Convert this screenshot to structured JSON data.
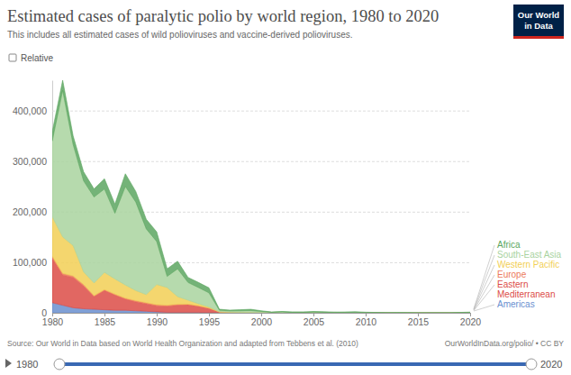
{
  "chart_data": {
    "type": "area",
    "title": "Estimated cases of paralytic polio by world region, 1980 to 2020",
    "subtitle": "This includes all estimated cases of wild polioviruses and vaccine-derived polioviruses.",
    "annotations": {
      "toggle": "Relative",
      "logo": [
        "Our World",
        "in Data"
      ],
      "source": "Source: Our World in Data based on World Health Organization and adapted from Tebbens et al. (2010)",
      "url": "OurWorldInData.org/polio/ • CC BY",
      "timeline": [
        "1980",
        "2020"
      ]
    },
    "stacked": true,
    "grid": true,
    "legend": "right",
    "x": [
      1980,
      1981,
      1982,
      1983,
      1984,
      1985,
      1986,
      1987,
      1988,
      1989,
      1990,
      1991,
      1992,
      1993,
      1994,
      1995,
      1996,
      1997,
      1998,
      1999,
      2000,
      2001,
      2002,
      2003,
      2004,
      2005,
      2006,
      2007,
      2008,
      2009,
      2010,
      2011,
      2012,
      2013,
      2014,
      2015,
      2016,
      2017,
      2018,
      2019,
      2020
    ],
    "xlim": [
      1980,
      2020
    ],
    "xticks": [
      1980,
      1985,
      1990,
      1995,
      2000,
      2005,
      2010,
      2015,
      2020
    ],
    "ylim": [
      0,
      460000
    ],
    "yticks": [
      0,
      {
        "value": 100000,
        "label": "100,000"
      },
      {
        "value": 200000,
        "label": "200,000"
      },
      {
        "value": 300000,
        "label": "300,000"
      },
      {
        "value": 400000,
        "label": "400,000"
      }
    ],
    "series": [
      {
        "name": "Africa",
        "color": "#5ca660",
        "values": [
          18000,
          20000,
          17000,
          18000,
          16000,
          20000,
          18000,
          25000,
          21000,
          19000,
          19000,
          15000,
          15000,
          10000,
          10000,
          10000,
          2000,
          1500,
          2000,
          2500,
          1500,
          800,
          800,
          1500,
          1500,
          1000,
          1200,
          400,
          1000,
          1200,
          500,
          600,
          200,
          100,
          100,
          50,
          100,
          100,
          100,
          400,
          600
        ]
      },
      {
        "name": "South-East Asia",
        "color": "#a9d39f",
        "values": [
          150000,
          290000,
          200000,
          180000,
          170000,
          165000,
          130000,
          195000,
          175000,
          130000,
          85000,
          22000,
          55000,
          35000,
          32000,
          28000,
          3000,
          2500,
          3000,
          3500,
          2000,
          600,
          1600,
          300,
          200,
          700,
          700,
          900,
          600,
          800,
          100,
          0,
          0,
          0,
          0,
          0,
          0,
          0,
          0,
          0,
          0
        ]
      },
      {
        "name": "Western Pacific",
        "color": "#f2cf55",
        "values": [
          78000,
          72000,
          60000,
          25000,
          25000,
          34000,
          30000,
          26000,
          20000,
          16000,
          40000,
          35000,
          15000,
          8000,
          4000,
          2000,
          500,
          200,
          0,
          0,
          100,
          0,
          0,
          0,
          0,
          0,
          0,
          0,
          0,
          0,
          0,
          0,
          0,
          0,
          0,
          0,
          0,
          0,
          0,
          50,
          0
        ]
      },
      {
        "name": "Europe",
        "color": "#ec7a5c",
        "values": [
          4000,
          3000,
          3000,
          3000,
          2000,
          2000,
          2000,
          2000,
          2000,
          2000,
          2000,
          2000,
          2000,
          1000,
          1000,
          1000,
          300,
          200,
          100,
          0,
          0,
          0,
          0,
          0,
          0,
          0,
          0,
          0,
          0,
          0,
          500,
          0,
          0,
          0,
          0,
          0,
          0,
          0,
          0,
          0,
          0
        ]
      },
      {
        "name": "Eastern Mediterranean",
        "color": "#dc4c47",
        "values": [
          88000,
          60000,
          60000,
          45000,
          25000,
          38000,
          30000,
          22000,
          18000,
          15000,
          12000,
          12000,
          14000,
          15000,
          12000,
          8000,
          1000,
          1000,
          1000,
          1000,
          500,
          300,
          200,
          200,
          300,
          800,
          200,
          100,
          100,
          100,
          100,
          100,
          100,
          500,
          400,
          100,
          100,
          100,
          100,
          300,
          800
        ]
      },
      {
        "name": "Americas",
        "color": "#6a8fcf",
        "values": [
          20000,
          15000,
          10000,
          8000,
          7000,
          6000,
          5000,
          5000,
          4000,
          3000,
          2000,
          1000,
          1000,
          1000,
          1000,
          500,
          300,
          0,
          0,
          0,
          0,
          0,
          0,
          0,
          0,
          0,
          0,
          0,
          0,
          0,
          0,
          0,
          0,
          0,
          0,
          0,
          0,
          0,
          0,
          0,
          0
        ]
      }
    ]
  }
}
